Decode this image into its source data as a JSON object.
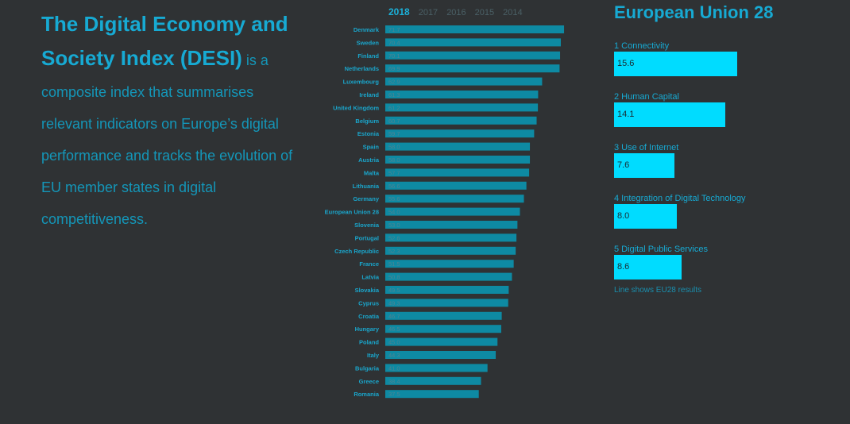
{
  "intro": {
    "highlight": "The Digital Economy and Society Index (DESI)",
    "text": " is a composite index that summarises relevant indicators on Europe’s digital performance and tracks the evolution of EU member states in digital competitiveness."
  },
  "years": [
    "2018",
    "2017",
    "2016",
    "2015",
    "2014"
  ],
  "selected_year": "2018",
  "chart_data": {
    "type": "bar",
    "orientation": "horizontal",
    "categories": [
      "Denmark",
      "Sweden",
      "Finland",
      "Netherlands",
      "Luxembourg",
      "Ireland",
      "United Kingdom",
      "Belgium",
      "Estonia",
      "Spain",
      "Austria",
      "Malta",
      "Lithuania",
      "Germany",
      "European Union 28",
      "Slovenia",
      "Portugal",
      "Czech Republic",
      "France",
      "Latvia",
      "Slovakia",
      "Cyprus",
      "Croatia",
      "Hungary",
      "Poland",
      "Italy",
      "Bulgaria",
      "Greece",
      "Romania"
    ],
    "values": [
      71.7,
      70.4,
      70.1,
      69.9,
      62.9,
      61.3,
      61.2,
      60.7,
      59.7,
      58.0,
      58.0,
      57.7,
      56.6,
      55.6,
      54.0,
      53.0,
      52.6,
      52.3,
      51.5,
      50.8,
      49.5,
      49.3,
      46.7,
      46.5,
      45.0,
      44.3,
      41.0,
      38.4,
      37.5
    ],
    "xlim": [
      0,
      72
    ],
    "bar_color": "#0e8aa3",
    "label_color": "#1aa6cc"
  },
  "eu": {
    "title": "European Union 28",
    "max_value": 15.6,
    "dimensions": [
      {
        "label": "1 Connectivity",
        "value": "15.6"
      },
      {
        "label": "2 Human Capital",
        "value": "14.1"
      },
      {
        "label": "3 Use of Internet",
        "value": "7.6"
      },
      {
        "label": "4 Integration of Digital Technology",
        "value": "8.0"
      },
      {
        "label": "5 Digital Public Services",
        "value": "8.6"
      }
    ],
    "note": "Line shows EU28 results",
    "bar_color": "#00dcff"
  }
}
